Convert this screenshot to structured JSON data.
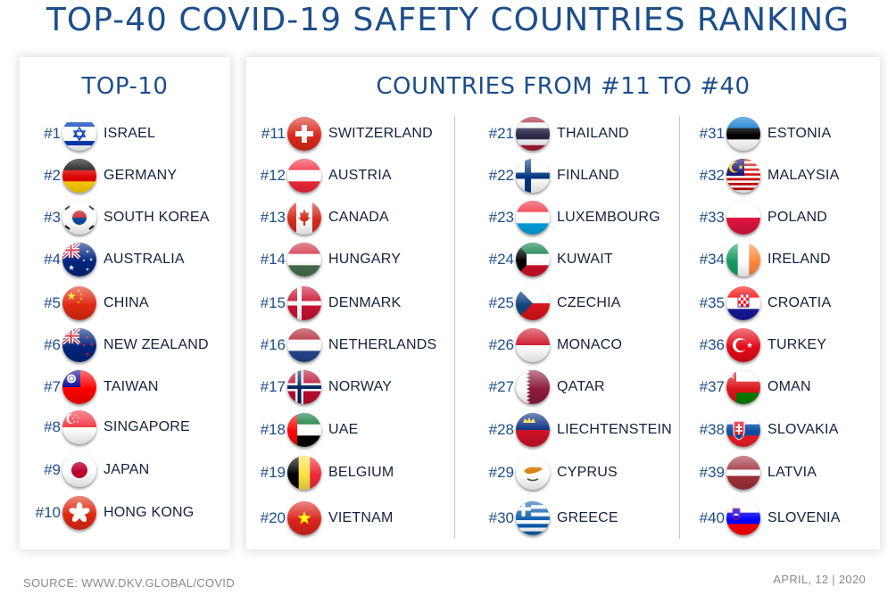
{
  "title": "TOP-40 COVID-19 SAFETY COUNTRIES RANKING",
  "left_panel": {
    "title": "TOP-10"
  },
  "right_panel": {
    "title": "COUNTRIES FROM #11 TO #40"
  },
  "countries": [
    {
      "rank": "#1",
      "name": "ISRAEL",
      "flag": "israel-flag-icon"
    },
    {
      "rank": "#2",
      "name": "GERMANY",
      "flag": "germany-flag-icon"
    },
    {
      "rank": "#3",
      "name": "SOUTH KOREA",
      "flag": "south-korea-flag-icon"
    },
    {
      "rank": "#4",
      "name": "AUSTRALIA",
      "flag": "australia-flag-icon"
    },
    {
      "rank": "#5",
      "name": "CHINA",
      "flag": "china-flag-icon"
    },
    {
      "rank": "#6",
      "name": "NEW ZEALAND",
      "flag": "new-zealand-flag-icon"
    },
    {
      "rank": "#7",
      "name": "TAIWAN",
      "flag": "taiwan-flag-icon"
    },
    {
      "rank": "#8",
      "name": "SINGAPORE",
      "flag": "singapore-flag-icon"
    },
    {
      "rank": "#9",
      "name": "JAPAN",
      "flag": "japan-flag-icon"
    },
    {
      "rank": "#10",
      "name": "HONG KONG",
      "flag": "hong-kong-flag-icon"
    },
    {
      "rank": "#11",
      "name": "SWITZERLAND",
      "flag": "switzerland-flag-icon"
    },
    {
      "rank": "#12",
      "name": "AUSTRIA",
      "flag": "austria-flag-icon"
    },
    {
      "rank": "#13",
      "name": "CANADA",
      "flag": "canada-flag-icon"
    },
    {
      "rank": "#14",
      "name": "HUNGARY",
      "flag": "hungary-flag-icon"
    },
    {
      "rank": "#15",
      "name": "DENMARK",
      "flag": "denmark-flag-icon"
    },
    {
      "rank": "#16",
      "name": "NETHERLANDS",
      "flag": "netherlands-flag-icon"
    },
    {
      "rank": "#17",
      "name": "NORWAY",
      "flag": "norway-flag-icon"
    },
    {
      "rank": "#18",
      "name": "UAE",
      "flag": "uae-flag-icon"
    },
    {
      "rank": "#19",
      "name": "BELGIUM",
      "flag": "belgium-flag-icon"
    },
    {
      "rank": "#20",
      "name": "VIETNAM",
      "flag": "vietnam-flag-icon"
    },
    {
      "rank": "#21",
      "name": "THAILAND",
      "flag": "thailand-flag-icon"
    },
    {
      "rank": "#22",
      "name": "FINLAND",
      "flag": "finland-flag-icon"
    },
    {
      "rank": "#23",
      "name": "LUXEMBOURG",
      "flag": "luxembourg-flag-icon"
    },
    {
      "rank": "#24",
      "name": "KUWAIT",
      "flag": "kuwait-flag-icon"
    },
    {
      "rank": "#25",
      "name": "CZECHIA",
      "flag": "czechia-flag-icon"
    },
    {
      "rank": "#26",
      "name": "MONACO",
      "flag": "monaco-flag-icon"
    },
    {
      "rank": "#27",
      "name": "QATAR",
      "flag": "qatar-flag-icon"
    },
    {
      "rank": "#28",
      "name": "LIECHTENSTEIN",
      "flag": "liechtenstein-flag-icon"
    },
    {
      "rank": "#29",
      "name": "CYPRUS",
      "flag": "cyprus-flag-icon"
    },
    {
      "rank": "#30",
      "name": "GREECE",
      "flag": "greece-flag-icon"
    },
    {
      "rank": "#31",
      "name": "ESTONIA",
      "flag": "estonia-flag-icon"
    },
    {
      "rank": "#32",
      "name": "MALAYSIA",
      "flag": "malaysia-flag-icon"
    },
    {
      "rank": "#33",
      "name": "POLAND",
      "flag": "poland-flag-icon"
    },
    {
      "rank": "#34",
      "name": "IRELAND",
      "flag": "ireland-flag-icon"
    },
    {
      "rank": "#35",
      "name": "CROATIA",
      "flag": "croatia-flag-icon"
    },
    {
      "rank": "#36",
      "name": "TURKEY",
      "flag": "turkey-flag-icon"
    },
    {
      "rank": "#37",
      "name": "OMAN",
      "flag": "oman-flag-icon"
    },
    {
      "rank": "#38",
      "name": "SLOVAKIA",
      "flag": "slovakia-flag-icon"
    },
    {
      "rank": "#39",
      "name": "LATVIA",
      "flag": "latvia-flag-icon"
    },
    {
      "rank": "#40",
      "name": "SLOVENIA",
      "flag": "slovenia-flag-icon"
    }
  ],
  "footer": {
    "source": "SOURCE: WWW.DKV.GLOBAL/COVID",
    "date": "APRIL, 12 | 2020"
  },
  "colors": {
    "title": "#1c4e8a",
    "rank": "#1c4e8a",
    "country": "#14213d"
  }
}
